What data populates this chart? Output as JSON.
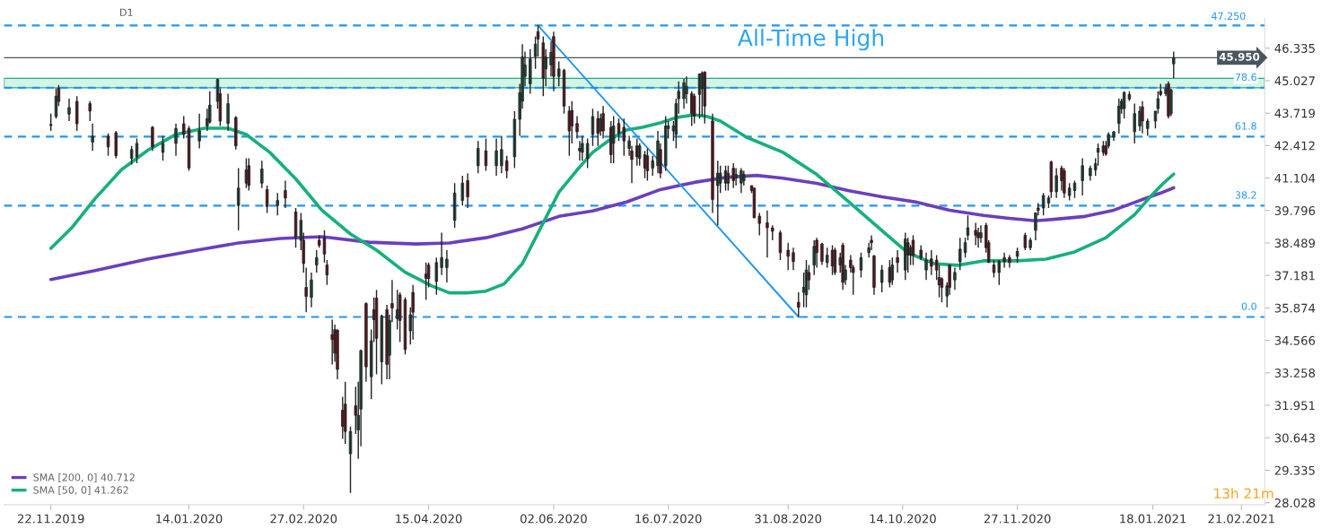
{
  "chart_data": {
    "type": "candlestick",
    "x": [
      "2019-11-22",
      "2019-11-24",
      "2019-11-25",
      "2019-11-29",
      "2019-12-02",
      "2019-12-07",
      "2019-12-08",
      "2019-12-14",
      "2019-12-17",
      "2019-12-23",
      "2019-12-25",
      "2019-12-31",
      "2020-01-04",
      "2020-01-09",
      "2020-01-12",
      "2020-01-14",
      "2020-01-18",
      "2020-01-21",
      "2020-01-22",
      "2020-01-25",
      "2020-01-26",
      "2020-01-29",
      "2020-02-01",
      "2020-02-02",
      "2020-02-05",
      "2020-02-06",
      "2020-02-11",
      "2020-02-13",
      "2020-02-17",
      "2020-02-20",
      "2020-02-24",
      "2020-02-26",
      "2020-02-27",
      "2020-02-28",
      "2020-03-01",
      "2020-03-03",
      "2020-03-04",
      "2020-03-06",
      "2020-03-07",
      "2020-03-09",
      "2020-03-10",
      "2020-03-11",
      "2020-03-13",
      "2020-03-14",
      "2020-03-16",
      "2020-03-18",
      "2020-03-19",
      "2020-03-20",
      "2020-03-22",
      "2020-03-24",
      "2020-03-25",
      "2020-03-26",
      "2020-03-28",
      "2020-03-30",
      "2020-03-31",
      "2020-04-01",
      "2020-04-03",
      "2020-04-04",
      "2020-04-06",
      "2020-04-08",
      "2020-04-09",
      "2020-04-14",
      "2020-04-15",
      "2020-04-18",
      "2020-04-20",
      "2020-04-22",
      "2020-04-25",
      "2020-04-28",
      "2020-04-30",
      "2020-05-04",
      "2020-05-07",
      "2020-05-11",
      "2020-05-13",
      "2020-05-15",
      "2020-05-18",
      "2020-05-20",
      "2020-05-21",
      "2020-05-22",
      "2020-05-24",
      "2020-05-26",
      "2020-05-27",
      "2020-05-29",
      "2020-05-30",
      "2020-06-01",
      "2020-06-02",
      "2020-06-04",
      "2020-06-06",
      "2020-06-08",
      "2020-06-09",
      "2020-06-11",
      "2020-06-12",
      "2020-06-13",
      "2020-06-15",
      "2020-06-17",
      "2020-06-19",
      "2020-06-20",
      "2020-06-21",
      "2020-06-24",
      "2020-06-25",
      "2020-06-27",
      "2020-06-29",
      "2020-07-01",
      "2020-07-02",
      "2020-07-04",
      "2020-07-05",
      "2020-07-07",
      "2020-07-08",
      "2020-07-10",
      "2020-07-12",
      "2020-07-13",
      "2020-07-15",
      "2020-07-16",
      "2020-07-18",
      "2020-07-19",
      "2020-07-20",
      "2020-07-22",
      "2020-07-23",
      "2020-07-25",
      "2020-07-26",
      "2020-07-28",
      "2020-07-29",
      "2020-07-30",
      "2020-08-02",
      "2020-08-04",
      "2020-08-05",
      "2020-08-07",
      "2020-08-08",
      "2020-08-10",
      "2020-08-11",
      "2020-08-13",
      "2020-08-14",
      "2020-08-17",
      "2020-08-18",
      "2020-08-20",
      "2020-08-23",
      "2020-08-25",
      "2020-08-28",
      "2020-08-31",
      "2020-09-02",
      "2020-09-04",
      "2020-09-06",
      "2020-09-07",
      "2020-09-08",
      "2020-09-10",
      "2020-09-11",
      "2020-09-13",
      "2020-09-15",
      "2020-09-17",
      "2020-09-18",
      "2020-09-20",
      "2020-09-21",
      "2020-09-22",
      "2020-09-24",
      "2020-09-25",
      "2020-09-28",
      "2020-10-01",
      "2020-10-02",
      "2020-10-03",
      "2020-10-06",
      "2020-10-09",
      "2020-10-10",
      "2020-10-12",
      "2020-10-15",
      "2020-10-16",
      "2020-10-17",
      "2020-10-18",
      "2020-10-21",
      "2020-10-23",
      "2020-10-25",
      "2020-10-27",
      "2020-10-28",
      "2020-10-29",
      "2020-10-31",
      "2020-11-01",
      "2020-11-03",
      "2020-11-05",
      "2020-11-07",
      "2020-11-08",
      "2020-11-11",
      "2020-11-12",
      "2020-11-13",
      "2020-11-15",
      "2020-11-16",
      "2020-11-18",
      "2020-11-20",
      "2020-11-22",
      "2020-11-24",
      "2020-11-27",
      "2020-11-30",
      "2020-12-02",
      "2020-12-04",
      "2020-12-05",
      "2020-12-07",
      "2020-12-09",
      "2020-12-10",
      "2020-12-12",
      "2020-12-14",
      "2020-12-15",
      "2020-12-17",
      "2020-12-19",
      "2020-12-22",
      "2020-12-25",
      "2020-12-27",
      "2020-12-28",
      "2020-12-30",
      "2020-12-31",
      "2021-01-01",
      "2021-01-03",
      "2021-01-05",
      "2021-01-06",
      "2021-01-07",
      "2021-01-09",
      "2021-01-11",
      "2021-01-13",
      "2021-01-14",
      "2021-01-16",
      "2021-01-19",
      "2021-01-20",
      "2021-01-21",
      "2021-01-23",
      "2021-01-24",
      "2021-01-25",
      "2021-01-26"
    ],
    "ohlc": [
      [
        43.26,
        43.7,
        43.0,
        43.22
      ],
      [
        43.58,
        44.72,
        43.5,
        44.4
      ],
      [
        44.72,
        44.85,
        44.0,
        44.19
      ],
      [
        43.68,
        44.3,
        43.4,
        43.94
      ],
      [
        44.19,
        44.4,
        43.0,
        43.29
      ],
      [
        44.1,
        44.2,
        43.4,
        43.8
      ],
      [
        42.55,
        43.3,
        42.2,
        42.79
      ],
      [
        42.79,
        42.9,
        42.0,
        42.36
      ],
      [
        42.93,
        43.0,
        41.9,
        42.0
      ],
      [
        41.9,
        42.4,
        41.65,
        42.25
      ],
      [
        41.96,
        42.7,
        41.7,
        42.5
      ],
      [
        43.15,
        43.2,
        42.2,
        42.36
      ],
      [
        42.14,
        42.8,
        41.8,
        42.5
      ],
      [
        42.5,
        43.3,
        42.0,
        43.1
      ],
      [
        43.29,
        43.6,
        42.7,
        42.86
      ],
      [
        43.1,
        43.2,
        41.4,
        41.5
      ],
      [
        42.6,
        43.7,
        42.3,
        43.0
      ],
      [
        43.2,
        43.9,
        43.0,
        43.5
      ],
      [
        43.36,
        44.6,
        43.3,
        44.04
      ],
      [
        44.19,
        45.1,
        43.9,
        45.08
      ],
      [
        44.5,
        44.7,
        43.2,
        43.4
      ],
      [
        43.3,
        44.5,
        43.0,
        44.1
      ],
      [
        43.54,
        43.6,
        42.25,
        42.4
      ],
      [
        40.0,
        41.5,
        39.0,
        40.7
      ],
      [
        40.9,
        41.9,
        40.7,
        41.43
      ],
      [
        41.6,
        41.9,
        40.6,
        40.8
      ],
      [
        40.9,
        41.8,
        40.7,
        41.47
      ],
      [
        40.64,
        40.8,
        39.7,
        39.96
      ],
      [
        40.0,
        40.5,
        39.6,
        40.2
      ],
      [
        40.6,
        41.0,
        39.9,
        40.3
      ],
      [
        39.74,
        39.9,
        38.3,
        38.74
      ],
      [
        38.6,
        39.7,
        38.2,
        39.4
      ],
      [
        38.6,
        38.9,
        37.3,
        37.66
      ],
      [
        36.7,
        37.5,
        35.7,
        36.34
      ],
      [
        36.3,
        37.3,
        35.9,
        37.0
      ],
      [
        37.6,
        38.2,
        37.3,
        37.9
      ],
      [
        38.6,
        38.8,
        38.3,
        38.4
      ],
      [
        38.7,
        39.0,
        37.7,
        38.04
      ],
      [
        37.6,
        37.8,
        36.8,
        37.2
      ],
      [
        34.8,
        35.4,
        33.6,
        34.6
      ],
      [
        35.0,
        35.2,
        33.7,
        34.05
      ],
      [
        34.98,
        35.0,
        33.0,
        33.4
      ],
      [
        31.75,
        32.3,
        30.6,
        31.1
      ],
      [
        32.0,
        32.9,
        30.4,
        30.9
      ],
      [
        30.0,
        31.1,
        28.42,
        30.9
      ],
      [
        31.93,
        32.7,
        30.8,
        31.55
      ],
      [
        30.96,
        32.9,
        29.8,
        31.55
      ],
      [
        31.8,
        34.2,
        30.3,
        34.15
      ],
      [
        36.05,
        36.1,
        32.9,
        33.5
      ],
      [
        33.1,
        35.0,
        32.2,
        34.55
      ],
      [
        35.8,
        36.3,
        34.5,
        35.4
      ],
      [
        36.27,
        36.6,
        33.2,
        34.65
      ],
      [
        33.7,
        35.6,
        32.8,
        35.55
      ],
      [
        35.8,
        36.0,
        33.0,
        33.6
      ],
      [
        33.97,
        35.6,
        33.0,
        35.37
      ],
      [
        36.05,
        37.0,
        35.3,
        35.87
      ],
      [
        35.44,
        36.6,
        35.0,
        35.8
      ],
      [
        36.4,
        36.5,
        34.5,
        35.37
      ],
      [
        36.2,
        36.3,
        34.0,
        34.2
      ],
      [
        34.95,
        35.9,
        34.4,
        35.6
      ],
      [
        36.5,
        36.8,
        34.6,
        35.7
      ],
      [
        37.24,
        37.7,
        36.2,
        37.06
      ],
      [
        37.6,
        37.7,
        36.7,
        37.06
      ],
      [
        36.94,
        37.9,
        36.4,
        37.7
      ],
      [
        37.5,
        38.9,
        37.2,
        37.9
      ],
      [
        37.5,
        38.2,
        36.9,
        37.84
      ],
      [
        39.4,
        40.9,
        39.1,
        40.5
      ],
      [
        40.2,
        41.2,
        40.0,
        40.9
      ],
      [
        41.0,
        41.3,
        39.9,
        40.35
      ],
      [
        41.6,
        42.6,
        41.3,
        42.3
      ],
      [
        42.2,
        42.7,
        41.4,
        41.6
      ],
      [
        41.6,
        42.7,
        41.2,
        42.2
      ],
      [
        41.6,
        42.8,
        41.3,
        42.25
      ],
      [
        41.8,
        42.0,
        41.1,
        41.4
      ],
      [
        41.96,
        43.8,
        41.5,
        43.47
      ],
      [
        43.47,
        44.9,
        42.8,
        44.54
      ],
      [
        44.2,
        46.5,
        43.9,
        45.98
      ],
      [
        45.2,
        46.2,
        44.8,
        45.66
      ],
      [
        44.9,
        46.3,
        44.5,
        45.9
      ],
      [
        46.0,
        46.8,
        45.5,
        46.5
      ],
      [
        47.0,
        47.25,
        46.0,
        46.7
      ],
      [
        46.55,
        46.8,
        44.4,
        45.12
      ],
      [
        45.5,
        46.3,
        44.8,
        45.98
      ],
      [
        45.66,
        46.6,
        45.2,
        46.16
      ],
      [
        46.8,
        47.0,
        44.6,
        45.2
      ],
      [
        45.2,
        45.8,
        44.8,
        45.5
      ],
      [
        45.44,
        45.5,
        43.7,
        44.0
      ],
      [
        43.8,
        44.0,
        42.0,
        43.0
      ],
      [
        43.83,
        44.2,
        42.5,
        43.2
      ],
      [
        43.3,
        43.6,
        42.7,
        42.97
      ],
      [
        42.3,
        42.6,
        41.8,
        42.2
      ],
      [
        42.14,
        42.8,
        41.8,
        42.5
      ],
      [
        41.9,
        42.7,
        41.5,
        42.5
      ],
      [
        42.86,
        43.9,
        42.4,
        43.58
      ],
      [
        43.5,
        43.8,
        42.4,
        42.9
      ],
      [
        43.0,
        43.7,
        42.8,
        43.5
      ],
      [
        43.7,
        44.0,
        42.7,
        43.0
      ],
      [
        43.15,
        43.4,
        41.7,
        42.05
      ],
      [
        42.5,
        43.6,
        41.7,
        43.2
      ],
      [
        43.3,
        43.5,
        42.6,
        42.9
      ],
      [
        43.15,
        43.5,
        42.0,
        42.6
      ],
      [
        42.3,
        42.8,
        42.0,
        42.6
      ],
      [
        42.2,
        42.4,
        40.9,
        41.85
      ],
      [
        42.4,
        42.7,
        41.6,
        41.96
      ],
      [
        41.9,
        42.5,
        41.6,
        42.4
      ],
      [
        42.04,
        42.2,
        41.1,
        41.5
      ],
      [
        42.0,
        42.3,
        41.0,
        41.4
      ],
      [
        41.5,
        42.0,
        41.2,
        41.8
      ],
      [
        41.6,
        43.0,
        41.3,
        42.6
      ],
      [
        42.25,
        42.5,
        41.1,
        41.3
      ],
      [
        41.6,
        43.6,
        41.4,
        43.2
      ],
      [
        43.1,
        43.4,
        42.7,
        43.2
      ],
      [
        43.0,
        43.4,
        42.6,
        43.2
      ],
      [
        42.86,
        44.3,
        42.3,
        44.1
      ],
      [
        44.3,
        45.0,
        43.7,
        44.6
      ],
      [
        44.3,
        45.1,
        43.9,
        44.94
      ],
      [
        44.5,
        45.2,
        44.1,
        44.8
      ],
      [
        44.5,
        44.6,
        43.2,
        43.7
      ],
      [
        44.4,
        44.5,
        43.3,
        43.6
      ],
      [
        44.47,
        45.3,
        43.5,
        45.3
      ],
      [
        44.7,
        45.4,
        43.6,
        45.33
      ],
      [
        45.37,
        45.4,
        43.3,
        44.0
      ],
      [
        43.4,
        43.7,
        39.7,
        40.24
      ],
      [
        40.8,
        41.8,
        39.2,
        41.3
      ],
      [
        40.9,
        41.6,
        40.5,
        41.3
      ],
      [
        41.4,
        41.6,
        40.6,
        40.9
      ],
      [
        40.9,
        41.6,
        40.6,
        41.3
      ],
      [
        41.5,
        41.7,
        40.7,
        41.0
      ],
      [
        41.1,
        41.5,
        40.8,
        41.25
      ],
      [
        40.9,
        41.5,
        40.5,
        41.4
      ],
      [
        41.0,
        41.4,
        40.8,
        41.25
      ],
      [
        40.8,
        40.8,
        40.5,
        40.6
      ],
      [
        40.7,
        40.7,
        39.5,
        39.5
      ],
      [
        39.57,
        39.7,
        38.8,
        39.28
      ],
      [
        39.3,
        39.8,
        37.9,
        39.1
      ],
      [
        39.1,
        39.2,
        38.6,
        38.96
      ],
      [
        38.9,
        39.0,
        37.8,
        38.1
      ],
      [
        38.2,
        38.5,
        37.4,
        37.95
      ],
      [
        38.1,
        38.3,
        37.4,
        37.74
      ],
      [
        36.1,
        36.5,
        35.51,
        35.9
      ],
      [
        36.5,
        37.3,
        35.9,
        36.7
      ],
      [
        36.4,
        37.8,
        35.9,
        37.4
      ],
      [
        37.3,
        37.6,
        36.6,
        37.0
      ],
      [
        37.6,
        38.6,
        37.2,
        38.35
      ],
      [
        38.6,
        38.7,
        37.5,
        38.1
      ],
      [
        38.45,
        38.5,
        37.6,
        37.75
      ],
      [
        37.7,
        38.3,
        37.5,
        38.0
      ],
      [
        38.2,
        38.4,
        37.2,
        37.56
      ],
      [
        38.2,
        38.3,
        37.2,
        37.3
      ],
      [
        37.6,
        38.1,
        37.3,
        37.9
      ],
      [
        38.4,
        38.5,
        36.6,
        36.9
      ],
      [
        37.0,
        37.6,
        36.8,
        37.4
      ],
      [
        37.8,
        38.0,
        37.3,
        37.5
      ],
      [
        37.5,
        37.6,
        36.4,
        37.3
      ],
      [
        37.4,
        38.1,
        37.1,
        37.9
      ],
      [
        38.1,
        38.5,
        37.9,
        38.3
      ],
      [
        38.6,
        38.8,
        38.2,
        38.5
      ],
      [
        37.97,
        38.0,
        36.4,
        36.7
      ],
      [
        36.9,
        37.6,
        36.5,
        37.4
      ],
      [
        37.5,
        37.8,
        36.7,
        36.9
      ],
      [
        37.0,
        37.9,
        36.8,
        37.6
      ],
      [
        37.9,
        38.2,
        37.3,
        37.7
      ],
      [
        37.4,
        38.9,
        37.0,
        38.65
      ],
      [
        38.5,
        38.7,
        37.3,
        38.0
      ],
      [
        38.0,
        38.4,
        37.6,
        38.3
      ],
      [
        38.6,
        38.8,
        37.6,
        38.0
      ],
      [
        38.2,
        38.4,
        37.8,
        37.9
      ],
      [
        37.4,
        38.1,
        37.0,
        37.8
      ],
      [
        37.85,
        38.2,
        37.2,
        37.55
      ],
      [
        37.8,
        38.0,
        37.0,
        37.4
      ],
      [
        37.1,
        37.6,
        36.3,
        36.8
      ],
      [
        37.05,
        37.1,
        36.1,
        36.7
      ],
      [
        36.35,
        36.9,
        35.9,
        36.77
      ],
      [
        37.6,
        37.6,
        36.4,
        36.7
      ],
      [
        37.0,
        37.5,
        36.6,
        37.3
      ],
      [
        37.73,
        38.7,
        37.4,
        38.24
      ],
      [
        38.1,
        38.7,
        37.9,
        38.5
      ],
      [
        38.8,
        39.6,
        38.6,
        39.1
      ],
      [
        39.0,
        39.3,
        38.4,
        38.8
      ],
      [
        38.9,
        39.1,
        38.3,
        38.7
      ],
      [
        38.7,
        39.2,
        38.5,
        38.9
      ],
      [
        39.2,
        39.3,
        38.1,
        38.3
      ],
      [
        38.5,
        38.6,
        37.7,
        37.7
      ],
      [
        37.6,
        37.8,
        37.1,
        37.3
      ],
      [
        37.3,
        37.8,
        36.8,
        37.75
      ],
      [
        37.9,
        38.1,
        37.5,
        37.74
      ],
      [
        37.9,
        38.0,
        37.5,
        37.7
      ],
      [
        37.95,
        38.3,
        37.7,
        38.15
      ],
      [
        38.8,
        38.9,
        38.2,
        38.3
      ],
      [
        38.3,
        38.7,
        38.2,
        38.6
      ],
      [
        39.0,
        39.7,
        38.6,
        39.7
      ],
      [
        39.9,
        40.1,
        39.6,
        39.8
      ],
      [
        39.9,
        40.5,
        39.6,
        40.4
      ],
      [
        40.1,
        40.4,
        39.9,
        40.3
      ],
      [
        41.75,
        41.8,
        40.3,
        40.55
      ],
      [
        40.55,
        41.5,
        40.3,
        41.2
      ],
      [
        41.5,
        41.6,
        40.6,
        41.0
      ],
      [
        41.4,
        41.5,
        40.3,
        40.5
      ],
      [
        40.4,
        40.9,
        40.2,
        40.7
      ],
      [
        40.6,
        41.0,
        40.3,
        40.9
      ],
      [
        41.0,
        41.9,
        40.4,
        41.6
      ],
      [
        41.2,
        41.6,
        41.0,
        41.5
      ],
      [
        41.43,
        41.9,
        41.2,
        41.68
      ],
      [
        42.14,
        42.5,
        41.6,
        42.3
      ],
      [
        42.4,
        42.6,
        42.0,
        42.14
      ],
      [
        42.4,
        42.6,
        42.0,
        42.07
      ],
      [
        42.4,
        42.95,
        42.3,
        42.86
      ],
      [
        42.75,
        43.0,
        42.6,
        42.96
      ],
      [
        43.3,
        44.3,
        42.9,
        44.0
      ],
      [
        43.9,
        44.3,
        43.7,
        44.2
      ],
      [
        43.9,
        44.6,
        43.5,
        44.55
      ],
      [
        44.47,
        44.6,
        44.2,
        44.29
      ],
      [
        42.97,
        44.1,
        42.5,
        43.7
      ],
      [
        43.2,
        44.0,
        43.0,
        43.8
      ],
      [
        43.97,
        44.2,
        42.9,
        43.4
      ],
      [
        43.1,
        43.5,
        42.8,
        43.4
      ],
      [
        43.4,
        43.8,
        43.1,
        43.8
      ],
      [
        43.9,
        44.6,
        43.7,
        44.3
      ],
      [
        44.6,
        44.9,
        44.4,
        44.47
      ],
      [
        44.5,
        44.9,
        44.4,
        44.7
      ],
      [
        44.9,
        45.0,
        43.5,
        43.6
      ],
      [
        43.7,
        44.7,
        43.6,
        44.65
      ],
      [
        45.7,
        46.2,
        45.12,
        45.95
      ]
    ],
    "series": [
      {
        "type": "line",
        "name": "SMA [200, 0] 40.712",
        "color": "#6a3fbf",
        "x": [
          "2019-11-22",
          "2019-12-09",
          "2019-12-29",
          "2020-01-17",
          "2020-02-02",
          "2020-02-18",
          "2020-03-05",
          "2020-03-23",
          "2020-04-10",
          "2020-04-23",
          "2020-05-07",
          "2020-05-21",
          "2020-06-04",
          "2020-06-17",
          "2020-06-30",
          "2020-07-13",
          "2020-07-26",
          "2020-08-08",
          "2020-08-19",
          "2020-08-29",
          "2020-09-11",
          "2020-09-23",
          "2020-10-06",
          "2020-10-19",
          "2020-11-01",
          "2020-11-14",
          "2020-11-23",
          "2020-12-04",
          "2020-12-12",
          "2020-12-23",
          "2021-01-03",
          "2021-01-14",
          "2021-01-21",
          "2021-01-26"
        ],
        "values": [
          37.02,
          37.38,
          37.84,
          38.2,
          38.49,
          38.67,
          38.74,
          38.52,
          38.45,
          38.49,
          38.7,
          39.06,
          39.56,
          39.78,
          40.14,
          40.64,
          40.93,
          41.14,
          41.21,
          41.1,
          40.89,
          40.6,
          40.35,
          40.14,
          39.81,
          39.6,
          39.49,
          39.38,
          39.45,
          39.56,
          39.81,
          40.24,
          40.5,
          40.71
        ]
      },
      {
        "type": "line",
        "name": "SMA [50, 0] 41.262",
        "color": "#16b07a",
        "x": [
          "2019-11-22",
          "2019-11-30",
          "2019-12-09",
          "2019-12-19",
          "2019-12-29",
          "2020-01-09",
          "2020-01-20",
          "2020-01-29",
          "2020-02-05",
          "2020-02-14",
          "2020-02-24",
          "2020-03-05",
          "2020-03-16",
          "2020-03-26",
          "2020-04-06",
          "2020-04-16",
          "2020-04-23",
          "2020-04-30",
          "2020-05-07",
          "2020-05-14",
          "2020-05-21",
          "2020-05-28",
          "2020-06-04",
          "2020-06-11",
          "2020-06-17",
          "2020-06-24",
          "2020-06-30",
          "2020-07-06",
          "2020-07-13",
          "2020-07-19",
          "2020-07-26",
          "2020-07-31",
          "2020-08-05",
          "2020-08-15",
          "2020-08-29",
          "2020-09-11",
          "2020-09-23",
          "2020-10-06",
          "2020-10-16",
          "2020-10-26",
          "2020-11-04",
          "2020-11-14",
          "2020-11-27",
          "2020-12-08",
          "2020-12-19",
          "2020-12-31",
          "2021-01-11",
          "2021-01-18",
          "2021-01-22",
          "2021-01-26"
        ],
        "values": [
          38.27,
          39.1,
          40.28,
          41.43,
          42.21,
          42.86,
          43.11,
          43.11,
          42.86,
          42.14,
          41.07,
          39.81,
          38.85,
          38.2,
          37.31,
          36.77,
          36.48,
          36.48,
          36.55,
          36.84,
          37.66,
          39.1,
          40.53,
          41.43,
          42.14,
          42.68,
          43.04,
          43.15,
          43.33,
          43.54,
          43.65,
          43.58,
          43.4,
          42.75,
          42.14,
          41.25,
          40.17,
          38.99,
          38.09,
          37.66,
          37.59,
          37.77,
          37.77,
          37.84,
          38.13,
          38.7,
          39.63,
          40.46,
          40.89,
          41.26
        ]
      },
      {
        "type": "line",
        "color": "#2196f3",
        "x": [
          "2020-05-27",
          "2020-09-04"
        ],
        "values": [
          47.25,
          35.51
        ]
      }
    ],
    "xlim": [
      "2019-11-04",
      "2021-03-02"
    ],
    "xticks": [
      {
        "value": "2019-11-22",
        "label": "22.11.2019"
      },
      {
        "value": "2020-01-14",
        "label": "14.01.2020"
      },
      {
        "value": "2020-02-27",
        "label": "27.02.2020"
      },
      {
        "value": "2020-04-15",
        "label": "15.04.2020"
      },
      {
        "value": "2020-06-02",
        "label": "02.06.2020"
      },
      {
        "value": "2020-07-16",
        "label": "16.07.2020"
      },
      {
        "value": "2020-08-31",
        "label": "31.08.2020"
      },
      {
        "value": "2020-10-14",
        "label": "14.10.2020"
      },
      {
        "value": "2020-11-27",
        "label": "27.11.2020"
      },
      {
        "value": "2021-01-18",
        "label": "18.01.2021"
      },
      {
        "value": "2021-02-21",
        "label": "21.02.2021"
      }
    ],
    "ylim": [
      27.95,
      47.55
    ],
    "yticks": [
      46.335,
      45.027,
      43.719,
      42.412,
      41.104,
      39.796,
      38.489,
      37.181,
      35.874,
      34.566,
      33.258,
      31.951,
      30.643,
      29.335,
      28.028
    ],
    "ref_lines": [
      {
        "axis": "y",
        "value": 47.25,
        "label": "47.250",
        "color": "#2196f3",
        "line_style": "dashed"
      },
      {
        "axis": "y",
        "value": 45.95,
        "label": "45.950",
        "color": "#4a555e",
        "line_style": "solid"
      },
      {
        "axis": "y",
        "value": 44.74,
        "color": "#2196f3",
        "line_style": "dashed"
      },
      {
        "axis": "y",
        "value": 42.77,
        "color": "#2196f3",
        "line_style": "dashed"
      },
      {
        "axis": "y",
        "value": 39.99,
        "color": "#2196f3",
        "line_style": "dashed"
      },
      {
        "axis": "y",
        "value": 35.51,
        "color": "#2196f3",
        "line_style": "dashed"
      }
    ],
    "bands": [
      {
        "axis": "y",
        "from": 44.74,
        "to": 45.12,
        "color": "#d5f4e8"
      }
    ],
    "annotations": [
      "All-Time High",
      "D1",
      "13h 21m",
      {
        "text": "78.6",
        "x": "2021-02-27",
        "y": 44.74
      },
      {
        "text": "61.8",
        "x": "2021-02-27",
        "y": 42.77
      },
      {
        "text": "38.2",
        "x": "2021-02-27",
        "y": 39.99
      },
      {
        "text": "0.0",
        "x": "2021-02-27",
        "y": 35.51
      }
    ],
    "legend": "bottom left"
  }
}
